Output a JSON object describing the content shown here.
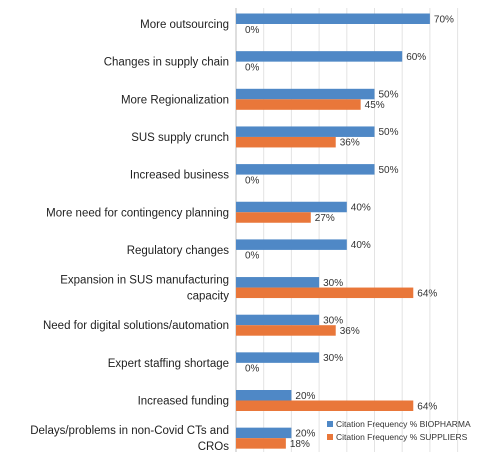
{
  "chart_data": {
    "type": "bar",
    "orientation": "horizontal",
    "categories": [
      [
        "More outsourcing"
      ],
      [
        "Changes in supply chain"
      ],
      [
        "More Regionalization"
      ],
      [
        "SUS supply crunch"
      ],
      [
        "Increased business"
      ],
      [
        "More need for contingency planning"
      ],
      [
        "Regulatory changes"
      ],
      [
        "Expansion in SUS manufacturing",
        "capacity"
      ],
      [
        "Need for digital solutions/automation"
      ],
      [
        "Expert staffing shortage"
      ],
      [
        "Increased funding"
      ],
      [
        "Delays/problems in non-Covid CTs and",
        "CROs"
      ]
    ],
    "series": [
      {
        "name": "Citation Frequency % BIOPHARMA",
        "color": "#4f88c6",
        "values": [
          70,
          60,
          50,
          50,
          50,
          40,
          40,
          30,
          30,
          30,
          20,
          20
        ]
      },
      {
        "name": "Citation Frequency % SUPPLIERS",
        "color": "#e9773a",
        "values": [
          0,
          0,
          45,
          36,
          0,
          27,
          0,
          64,
          36,
          0,
          64,
          18
        ]
      }
    ],
    "value_suffix": "%",
    "xlim": [
      0,
      80
    ],
    "grid": true,
    "legend_position": "bottom-right"
  }
}
